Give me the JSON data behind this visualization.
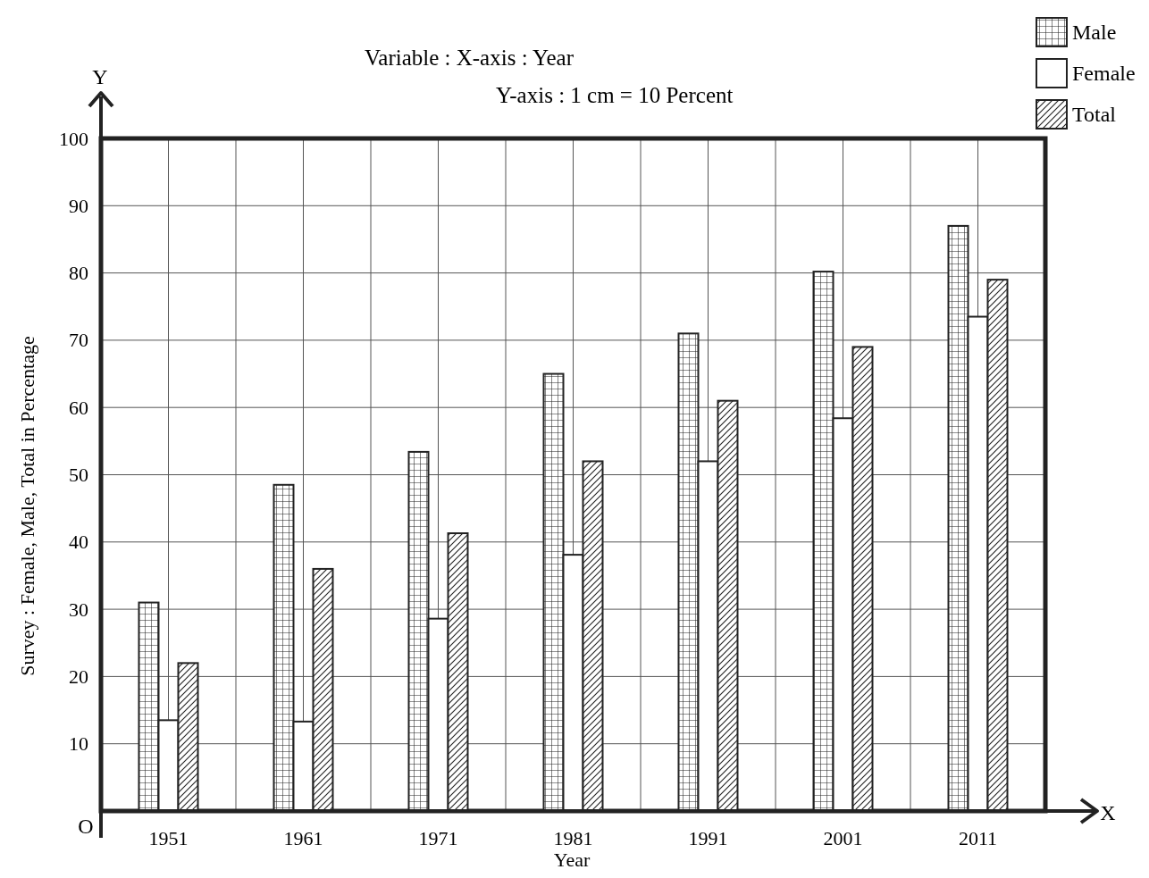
{
  "chart_data": {
    "type": "bar",
    "title": "Variable : X-axis : Year",
    "subtitle": "Y-axis : 1 cm = 10 Percent",
    "xlabel": "Year",
    "ylabel": "Survey : Female, Male, Total in Percentage",
    "categories": [
      "1951",
      "1961",
      "1971",
      "1981",
      "1991",
      "2001",
      "2011"
    ],
    "series": [
      {
        "name": "Male",
        "color": "#222222",
        "values": [
          31,
          48.5,
          53.4,
          65,
          71,
          80.2,
          87
        ]
      },
      {
        "name": "Female",
        "color": "#ffffff",
        "values": [
          13.5,
          13.3,
          28.6,
          38.1,
          52,
          58.4,
          73.5
        ]
      },
      {
        "name": "Total",
        "color": "#222222",
        "values": [
          22,
          36,
          41.3,
          52,
          61,
          69,
          79
        ]
      }
    ],
    "ylim": [
      0,
      100
    ],
    "yticks": [
      {
        "value": 0,
        "label": null
      },
      10,
      20,
      30,
      40,
      50,
      60,
      70,
      80,
      90,
      100
    ],
    "grid": true,
    "legend": "top right",
    "annotations": [
      "Y",
      "X",
      "O"
    ]
  }
}
